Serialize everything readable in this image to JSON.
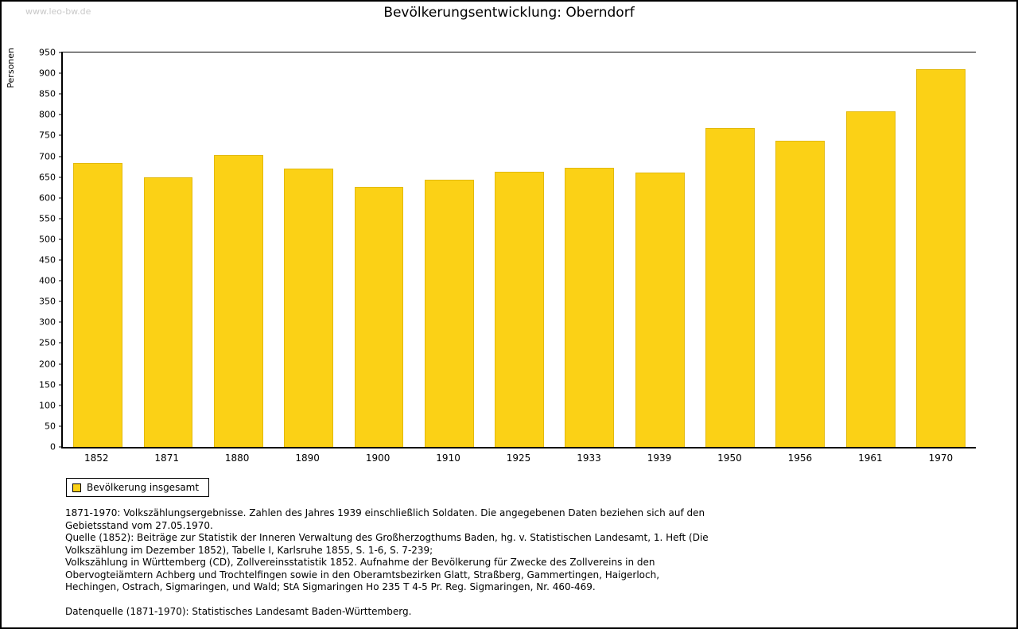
{
  "watermark": "www.leo-bw.de",
  "title": "Bevölkerungsentwicklung: Oberndorf",
  "chart_data": {
    "type": "bar",
    "title": "Bevölkerungsentwicklung: Oberndorf",
    "categories": [
      "1852",
      "1871",
      "1880",
      "1890",
      "1900",
      "1910",
      "1925",
      "1933",
      "1939",
      "1950",
      "1956",
      "1961",
      "1970"
    ],
    "values": [
      684,
      649,
      703,
      671,
      626,
      644,
      662,
      673,
      661,
      769,
      737,
      808,
      910
    ],
    "xlabel": "",
    "ylabel": "Personen",
    "ylim": [
      0,
      950
    ],
    "ytick_step": 50,
    "grid": false,
    "bar_color": "#FBD116",
    "legend_position": "bottom-left",
    "legend": [
      {
        "label": "Bevölkerung insgesamt",
        "color": "#FBD116"
      }
    ]
  },
  "footnotes": [
    "1871-1970: Volkszählungsergebnisse. Zahlen des Jahres 1939 einschließlich Soldaten. Die angegebenen Daten beziehen sich auf den Gebietsstand vom 27.05.1970.",
    "Quelle (1852): Beiträge zur Statistik der Inneren Verwaltung des Großherzogthums Baden, hg. v. Statistischen Landesamt, 1. Heft (Die Volkszählung im Dezember 1852), Tabelle I, Karlsruhe 1855, S. 1-6, S. 7-239;",
    "Volkszählung in Württemberg (CD), Zollvereinsstatistik 1852. Aufnahme der Bevölkerung für Zwecke des Zollvereins in den Obervogteiämtern Achberg und Trochtelfingen sowie in den Oberamtsbezirken Glatt, Straßberg, Gammertingen, Haigerloch, Hechingen, Ostrach, Sigmaringen, und Wald; StA Sigmaringen Ho 235 T 4-5 Pr. Reg. Sigmaringen, Nr. 460-469.",
    "Datenquelle (1871-1970): Statistisches Landesamt Baden-Württemberg."
  ]
}
